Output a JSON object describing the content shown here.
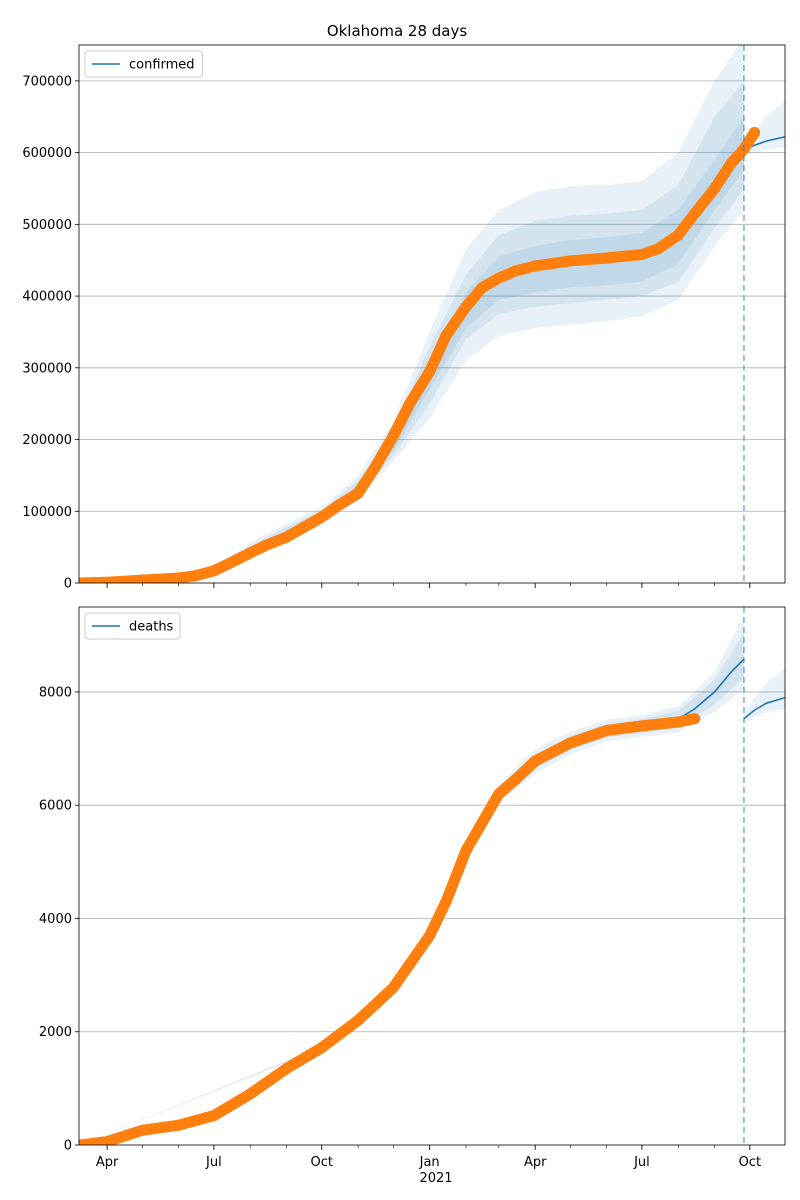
{
  "figure": {
    "title": "Oklahoma 28 days",
    "year_label": "2021",
    "x_ticks": [
      "Apr",
      "Jul",
      "Oct",
      "Jan",
      "Apr",
      "Jul",
      "Oct"
    ],
    "colors": {
      "model_line": "#1f77b4",
      "observed": "#ff7f0e",
      "band": "#1f77b4",
      "grid": "#b0b0b0",
      "vline": "#1f77b4"
    }
  },
  "chart_data": [
    {
      "type": "line",
      "title": "Oklahoma 28 days",
      "xlabel": "",
      "ylabel": "",
      "x_range": [
        "2020-03-08",
        "2021-10-31"
      ],
      "ylim": [
        0,
        750000
      ],
      "y_ticks": [
        "0",
        "100000",
        "200000",
        "300000",
        "400000",
        "500000",
        "600000",
        "700000"
      ],
      "grid": "horizontal",
      "legend": {
        "placement": "upper-left",
        "entries": [
          "confirmed"
        ]
      },
      "forecast_start": "2021-09-26",
      "series": [
        {
          "name": "confirmed",
          "kind": "model",
          "x": [
            "2020-03-08",
            "2020-04-01",
            "2020-05-01",
            "2020-06-01",
            "2020-06-15",
            "2020-07-01",
            "2020-07-15",
            "2020-08-01",
            "2020-08-15",
            "2020-09-01",
            "2020-09-15",
            "2020-10-01",
            "2020-10-15",
            "2020-11-01",
            "2020-11-15",
            "2020-12-01",
            "2020-12-15",
            "2021-01-01",
            "2021-01-15",
            "2021-02-01",
            "2021-02-15",
            "2021-03-01",
            "2021-03-15",
            "2021-04-01",
            "2021-05-01",
            "2021-06-01",
            "2021-07-01",
            "2021-07-15",
            "2021-08-01",
            "2021-08-15",
            "2021-09-01",
            "2021-09-15",
            "2021-09-26",
            "2021-10-01",
            "2021-10-15",
            "2021-10-31"
          ],
          "values": [
            0,
            1000,
            4000,
            7000,
            10000,
            17000,
            30000,
            45000,
            58000,
            70000,
            80000,
            92000,
            110000,
            130000,
            155000,
            195000,
            240000,
            290000,
            335000,
            375000,
            405000,
            422000,
            432000,
            440000,
            450000,
            453000,
            460000,
            468000,
            480000,
            505000,
            545000,
            580000,
            605000,
            608000,
            616000,
            622000
          ]
        },
        {
          "name": "",
          "kind": "observed",
          "x": [
            "2020-03-08",
            "2020-04-01",
            "2020-05-01",
            "2020-06-01",
            "2020-06-15",
            "2020-07-01",
            "2020-07-15",
            "2020-08-01",
            "2020-08-15",
            "2020-09-01",
            "2020-09-15",
            "2020-10-01",
            "2020-10-15",
            "2020-11-01",
            "2020-11-15",
            "2020-12-01",
            "2020-12-15",
            "2021-01-01",
            "2021-01-15",
            "2021-02-01",
            "2021-02-15",
            "2021-03-01",
            "2021-03-15",
            "2021-04-01",
            "2021-05-01",
            "2021-06-01",
            "2021-07-01",
            "2021-07-15",
            "2021-08-01",
            "2021-08-15",
            "2021-09-01",
            "2021-09-15",
            "2021-09-26",
            "2021-10-05"
          ],
          "values": [
            0,
            1000,
            4000,
            7000,
            10000,
            17000,
            28000,
            42000,
            53000,
            64000,
            77000,
            92000,
            108000,
            125000,
            160000,
            205000,
            250000,
            295000,
            345000,
            385000,
            412000,
            425000,
            435000,
            442000,
            449000,
            453000,
            458000,
            466000,
            485000,
            515000,
            550000,
            585000,
            605000,
            628000
          ]
        }
      ],
      "bands": [
        {
          "x": [
            "2020-03-08",
            "2020-06-01",
            "2020-07-01",
            "2020-08-01",
            "2020-09-01",
            "2020-10-01",
            "2020-11-01",
            "2020-12-01",
            "2021-01-01",
            "2021-02-01",
            "2021-03-01",
            "2021-04-01",
            "2021-05-01",
            "2021-06-01",
            "2021-07-01",
            "2021-08-01",
            "2021-09-01",
            "2021-09-26"
          ],
          "low": [
            0,
            6000,
            15000,
            36000,
            59000,
            80000,
            115000,
            170000,
            230000,
            310000,
            345000,
            355000,
            360000,
            365000,
            372000,
            395000,
            470000,
            520000
          ],
          "high": [
            0,
            8000,
            20000,
            56000,
            83000,
            106000,
            149000,
            225000,
            350000,
            465000,
            520000,
            545000,
            553000,
            555000,
            560000,
            600000,
            700000,
            760000
          ]
        },
        {
          "x": [
            "2020-03-08",
            "2020-06-01",
            "2020-07-01",
            "2020-08-01",
            "2020-09-01",
            "2020-10-01",
            "2020-11-01",
            "2020-12-01",
            "2021-01-01",
            "2021-02-01",
            "2021-03-01",
            "2021-04-01",
            "2021-05-01",
            "2021-06-01",
            "2021-07-01",
            "2021-08-01",
            "2021-09-01",
            "2021-09-26"
          ],
          "low": [
            0,
            6500,
            16000,
            39000,
            63000,
            84000,
            119000,
            178000,
            250000,
            340000,
            375000,
            385000,
            390000,
            395000,
            400000,
            420000,
            495000,
            550000
          ],
          "high": [
            0,
            7500,
            19000,
            52000,
            78000,
            101000,
            142000,
            212000,
            330000,
            430000,
            485000,
            505000,
            512000,
            515000,
            520000,
            555000,
            650000,
            700000
          ]
        },
        {
          "x": [
            "2020-03-08",
            "2020-06-01",
            "2020-07-01",
            "2020-08-01",
            "2020-09-01",
            "2020-10-01",
            "2020-11-01",
            "2020-12-01",
            "2021-01-01",
            "2021-02-01",
            "2021-03-01",
            "2021-04-01",
            "2021-05-01",
            "2021-06-01",
            "2021-07-01",
            "2021-08-01",
            "2021-09-01",
            "2021-09-26"
          ],
          "low": [
            0,
            6800,
            16500,
            42000,
            66000,
            87000,
            123000,
            185000,
            270000,
            355000,
            395000,
            405000,
            412000,
            415000,
            420000,
            445000,
            520000,
            575000
          ],
          "high": [
            0,
            7200,
            18500,
            48000,
            74000,
            97000,
            137000,
            205000,
            310000,
            405000,
            455000,
            470000,
            478000,
            482000,
            488000,
            520000,
            590000,
            650000
          ]
        },
        {
          "x": [
            "2021-09-26",
            "2021-10-05",
            "2021-10-15",
            "2021-10-31"
          ],
          "low": [
            597000,
            600000,
            604000,
            608000
          ],
          "high": [
            615000,
            630000,
            650000,
            672000
          ]
        }
      ]
    },
    {
      "type": "line",
      "xlabel": "",
      "ylabel": "",
      "x_range": [
        "2020-03-08",
        "2021-10-31"
      ],
      "ylim": [
        0,
        9500
      ],
      "y_ticks": [
        "0",
        "2000",
        "4000",
        "6000",
        "8000"
      ],
      "grid": "horizontal",
      "legend": {
        "placement": "upper-left",
        "entries": [
          "deaths"
        ]
      },
      "forecast_start": "2021-09-26",
      "series": [
        {
          "name": "deaths",
          "kind": "model",
          "x": [
            "2020-03-08",
            "2020-04-01",
            "2020-05-01",
            "2020-06-01",
            "2020-07-01",
            "2020-08-01",
            "2020-09-01",
            "2020-10-01",
            "2020-11-01",
            "2020-12-01",
            "2021-01-01",
            "2021-01-15",
            "2021-02-01",
            "2021-02-15",
            "2021-03-01",
            "2021-03-15",
            "2021-04-01",
            "2021-05-01",
            "2021-06-01",
            "2021-07-01",
            "2021-08-01",
            "2021-08-15",
            "2021-09-01",
            "2021-09-15",
            "2021-09-26"
          ],
          "values": [
            0,
            50,
            260,
            350,
            520,
            900,
            1350,
            1720,
            2200,
            2780,
            3700,
            4300,
            5200,
            5700,
            6200,
            6450,
            6780,
            7100,
            7320,
            7400,
            7520,
            7700,
            8000,
            8350,
            8580
          ]
        },
        {
          "name": "",
          "kind": "model-forecast",
          "x": [
            "2021-09-26",
            "2021-10-05",
            "2021-10-15",
            "2021-10-31"
          ],
          "values": [
            7530,
            7680,
            7800,
            7900
          ]
        },
        {
          "name": "",
          "kind": "observed",
          "x": [
            "2020-03-08",
            "2020-04-01",
            "2020-05-01",
            "2020-06-01",
            "2020-07-01",
            "2020-08-01",
            "2020-09-01",
            "2020-10-01",
            "2020-11-01",
            "2020-12-01",
            "2021-01-01",
            "2021-01-15",
            "2021-02-01",
            "2021-02-15",
            "2021-03-01",
            "2021-03-15",
            "2021-04-01",
            "2021-05-01",
            "2021-06-01",
            "2021-07-01",
            "2021-08-01",
            "2021-08-15"
          ],
          "values": [
            0,
            60,
            260,
            350,
            520,
            900,
            1350,
            1720,
            2200,
            2780,
            3700,
            4300,
            5200,
            5700,
            6200,
            6450,
            6780,
            7100,
            7320,
            7400,
            7470,
            7530
          ]
        }
      ],
      "bands": [
        {
          "x": [
            "2020-03-08",
            "2020-10-01",
            "2020-12-01",
            "2021-01-01",
            "2021-02-01",
            "2021-03-01",
            "2021-04-01",
            "2021-05-01",
            "2021-06-01",
            "2021-07-01",
            "2021-08-01",
            "2021-09-01",
            "2021-09-26"
          ],
          "low": [
            0,
            1700,
            2760,
            3660,
            5100,
            6050,
            6560,
            6900,
            7130,
            7210,
            7290,
            7650,
            8050
          ],
          "high": [
            0,
            1740,
            2800,
            3740,
            5300,
            6350,
            7000,
            7300,
            7510,
            7590,
            7750,
            8350,
            9350
          ]
        },
        {
          "x": [
            "2020-03-08",
            "2020-10-01",
            "2020-12-01",
            "2021-01-01",
            "2021-02-01",
            "2021-03-01",
            "2021-04-01",
            "2021-05-01",
            "2021-06-01",
            "2021-07-01",
            "2021-08-01",
            "2021-09-01",
            "2021-09-26"
          ],
          "low": [
            0,
            1710,
            2770,
            3680,
            5150,
            6120,
            6650,
            6980,
            7200,
            7280,
            7380,
            7780,
            8250
          ],
          "high": [
            0,
            1730,
            2790,
            3720,
            5250,
            6280,
            6900,
            7220,
            7440,
            7520,
            7660,
            8220,
            9050
          ]
        },
        {
          "x": [
            "2021-09-26",
            "2021-10-05",
            "2021-10-15",
            "2021-10-31"
          ],
          "low": [
            7450,
            7560,
            7640,
            7700
          ],
          "high": [
            7620,
            7900,
            8150,
            8420
          ]
        }
      ]
    }
  ]
}
